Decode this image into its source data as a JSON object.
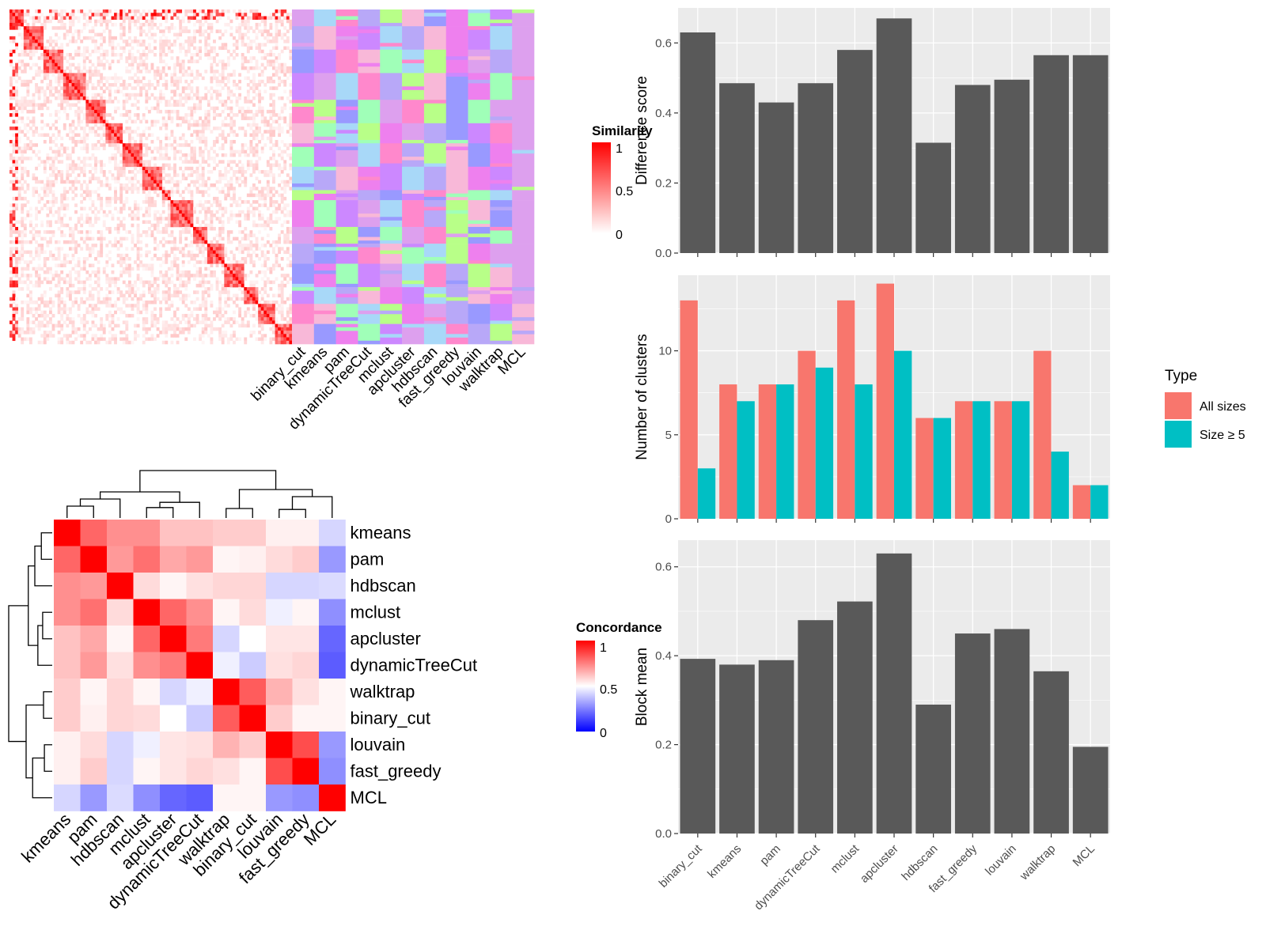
{
  "colors": {
    "panel_bg": "#EBEBEB",
    "grid": "#FFFFFF",
    "bar": "#595959",
    "all_sizes": "#F8766D",
    "size_ge5": "#00BFC4",
    "heat_high": "#FF0000",
    "heat_mid": "#FFFFFF",
    "heat_low": "#0000FF"
  },
  "chart_data": [
    {
      "type": "heatmap",
      "name": "Similarity heatmap with cluster membership",
      "legend_title": "Similarity",
      "legend_ticks": [
        "1",
        "0.5",
        "0"
      ],
      "scale": [
        0,
        1
      ],
      "note_rows": "approximately 100 terms ordered by clustering; diagonal-dominant",
      "membership_columns": [
        "binary_cut",
        "kmeans",
        "pam",
        "dynamicTreeCut",
        "mclust",
        "apcluster",
        "hdbscan",
        "fast_greedy",
        "louvain",
        "walktrap",
        "MCL"
      ]
    },
    {
      "type": "heatmap",
      "name": "Concordance heatmap",
      "legend_title": "Concordance",
      "legend_ticks": [
        "1",
        "0.5",
        "0"
      ],
      "scale": [
        0,
        1
      ],
      "row_labels": [
        "kmeans",
        "pam",
        "hdbscan",
        "mclust",
        "apcluster",
        "dynamicTreeCut",
        "walktrap",
        "binary_cut",
        "louvain",
        "fast_greedy",
        "MCL"
      ],
      "col_labels": [
        "kmeans",
        "pam",
        "hdbscan",
        "mclust",
        "apcluster",
        "dynamicTreeCut",
        "walktrap",
        "binary_cut",
        "louvain",
        "fast_greedy",
        "MCL"
      ],
      "values": [
        [
          1.0,
          0.8,
          0.72,
          0.72,
          0.62,
          0.62,
          0.6,
          0.6,
          0.53,
          0.53,
          0.42
        ],
        [
          0.8,
          1.0,
          0.7,
          0.78,
          0.67,
          0.7,
          0.52,
          0.53,
          0.57,
          0.6,
          0.3
        ],
        [
          0.72,
          0.7,
          1.0,
          0.57,
          0.52,
          0.56,
          0.58,
          0.58,
          0.42,
          0.42,
          0.43
        ],
        [
          0.72,
          0.78,
          0.57,
          1.0,
          0.8,
          0.72,
          0.52,
          0.57,
          0.47,
          0.52,
          0.28
        ],
        [
          0.62,
          0.67,
          0.52,
          0.8,
          1.0,
          0.76,
          0.42,
          0.5,
          0.55,
          0.55,
          0.2
        ],
        [
          0.62,
          0.7,
          0.56,
          0.72,
          0.76,
          1.0,
          0.47,
          0.4,
          0.56,
          0.58,
          0.18
        ],
        [
          0.6,
          0.52,
          0.58,
          0.52,
          0.42,
          0.47,
          1.0,
          0.82,
          0.65,
          0.56,
          0.52
        ],
        [
          0.6,
          0.53,
          0.58,
          0.57,
          0.5,
          0.4,
          0.82,
          1.0,
          0.6,
          0.52,
          0.52
        ],
        [
          0.53,
          0.57,
          0.42,
          0.47,
          0.55,
          0.56,
          0.65,
          0.6,
          1.0,
          0.85,
          0.3
        ],
        [
          0.53,
          0.6,
          0.42,
          0.52,
          0.55,
          0.58,
          0.56,
          0.52,
          0.85,
          1.0,
          0.28
        ],
        [
          0.42,
          0.3,
          0.43,
          0.28,
          0.2,
          0.18,
          0.52,
          0.52,
          0.3,
          0.28,
          1.0
        ]
      ]
    },
    {
      "type": "bar",
      "ylabel": "Difference score",
      "ylim": [
        0,
        0.7
      ],
      "yticks": [
        "0.0",
        "0.2",
        "0.4",
        "0.6"
      ],
      "categories": [
        "binary_cut",
        "kmeans",
        "pam",
        "dynamicTreeCut",
        "mclust",
        "apcluster",
        "hdbscan",
        "fast_greedy",
        "louvain",
        "walktrap",
        "MCL"
      ],
      "values": [
        0.63,
        0.485,
        0.43,
        0.485,
        0.58,
        0.67,
        0.315,
        0.48,
        0.495,
        0.565,
        0.565
      ]
    },
    {
      "type": "bar",
      "ylabel": "Number of clusters",
      "ylim": [
        0,
        14.5
      ],
      "yticks": [
        "0",
        "5",
        "10"
      ],
      "legend_title": "Type",
      "legend_position": "right",
      "categories": [
        "binary_cut",
        "kmeans",
        "pam",
        "dynamicTreeCut",
        "mclust",
        "apcluster",
        "hdbscan",
        "fast_greedy",
        "louvain",
        "walktrap",
        "MCL"
      ],
      "series": [
        {
          "name": "All sizes",
          "values": [
            13,
            8,
            8,
            10,
            13,
            14,
            6,
            7,
            7,
            10,
            2
          ]
        },
        {
          "name": "Size ≥ 5",
          "values": [
            3,
            7,
            8,
            9,
            8,
            10,
            6,
            7,
            7,
            4,
            2
          ]
        }
      ]
    },
    {
      "type": "bar",
      "ylabel": "Block mean",
      "ylim": [
        0,
        0.66
      ],
      "yticks": [
        "0.0",
        "0.2",
        "0.4",
        "0.6"
      ],
      "categories": [
        "binary_cut",
        "kmeans",
        "pam",
        "dynamicTreeCut",
        "mclust",
        "apcluster",
        "hdbscan",
        "fast_greedy",
        "louvain",
        "walktrap",
        "MCL"
      ],
      "values": [
        0.393,
        0.38,
        0.39,
        0.48,
        0.522,
        0.63,
        0.29,
        0.45,
        0.46,
        0.365,
        0.195
      ]
    }
  ]
}
